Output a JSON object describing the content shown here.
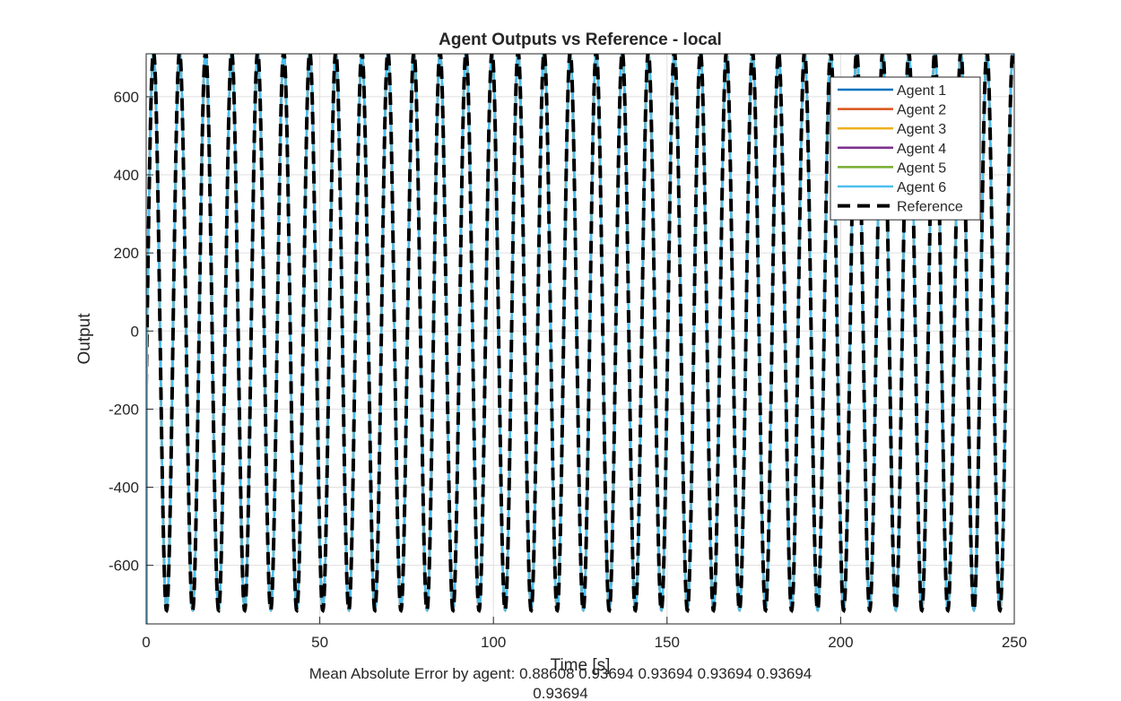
{
  "chart_data": {
    "type": "line",
    "title": "Agent Outputs vs Reference - local",
    "xlabel": "Time [s]",
    "ylabel": "Output",
    "xlim": [
      0,
      250
    ],
    "ylim": [
      -750,
      710
    ],
    "xticks": [
      0,
      50,
      100,
      150,
      200,
      250
    ],
    "yticks": [
      -600,
      -400,
      -200,
      0,
      200,
      400,
      600
    ],
    "grid": true,
    "legend_position": "top-right",
    "signal": {
      "form": "sinusoid",
      "amplitude": 715,
      "period_s": 7.5,
      "phase_rad": -0.2,
      "duration_s": 250,
      "agents_overlap_reference": true
    },
    "series": [
      {
        "name": "Agent 1",
        "color": "#0072BD",
        "style": "solid"
      },
      {
        "name": "Agent 2",
        "color": "#D95319",
        "style": "solid"
      },
      {
        "name": "Agent 3",
        "color": "#EDB120",
        "style": "solid"
      },
      {
        "name": "Agent 4",
        "color": "#7E2F8E",
        "style": "solid"
      },
      {
        "name": "Agent 5",
        "color": "#77AC30",
        "style": "solid"
      },
      {
        "name": "Agent 6",
        "color": "#4DBEEE",
        "style": "solid"
      },
      {
        "name": "Reference",
        "color": "#000000",
        "style": "dashed"
      }
    ],
    "annotation": {
      "prefix": "Mean Absolute Error by agent:",
      "values": [
        "0.88608",
        "0.93694",
        "0.93694",
        "0.93694",
        "0.93694",
        "0.93694"
      ]
    }
  }
}
